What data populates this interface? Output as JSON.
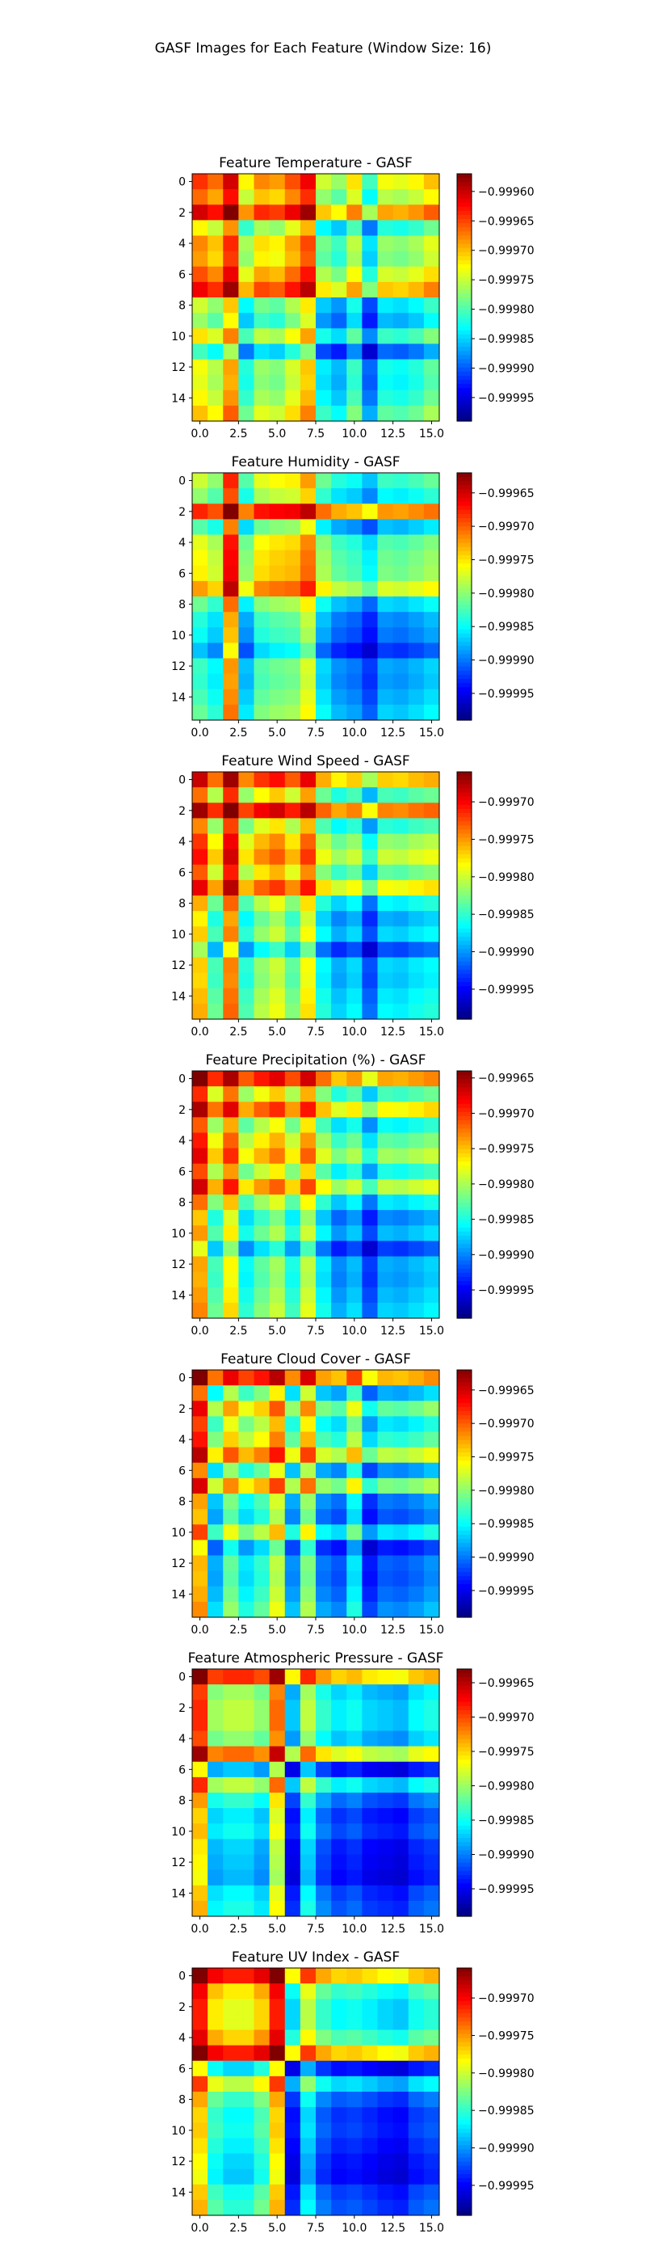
{
  "figure": {
    "suptitle": "GASF Images for Each Feature (Window Size: 16)"
  },
  "colormap": "jet",
  "chart_data": [
    {
      "type": "heatmap",
      "title": "Feature Temperature - GASF",
      "x_ticks": [
        "0.0",
        "2.5",
        "5.0",
        "7.5",
        "10.0",
        "12.5",
        "15.0"
      ],
      "y_ticks": [
        "0",
        "2",
        "4",
        "6",
        "8",
        "10",
        "12",
        "14"
      ],
      "colorbar_ticks": [
        "-0.99960",
        "-0.99965",
        "-0.99970",
        "-0.99975",
        "-0.99980",
        "-0.99985",
        "-0.99990",
        "-0.99995"
      ],
      "vmin": -0.99999,
      "vmax": -0.99957,
      "series": [
        0.7,
        0.62,
        0.82,
        0.42,
        0.58,
        0.55,
        0.66,
        0.78,
        0.35,
        0.28,
        0.45,
        0.18,
        0.4,
        0.38,
        0.42,
        0.5
      ]
    },
    {
      "type": "heatmap",
      "title": "Feature Humidity - GASF",
      "x_ticks": [
        "0.0",
        "2.5",
        "5.0",
        "7.5",
        "10.0",
        "12.5",
        "15.0"
      ],
      "y_ticks": [
        "0",
        "2",
        "4",
        "6",
        "8",
        "10",
        "12",
        "14"
      ],
      "colorbar_ticks": [
        "-0.99965",
        "-0.99970",
        "-0.99975",
        "-0.99980",
        "-0.99985",
        "-0.99990",
        "-0.99995"
      ],
      "vmin": -0.99999,
      "vmax": -0.99962,
      "series": [
        0.62,
        0.52,
        0.98,
        0.42,
        0.66,
        0.7,
        0.72,
        0.85,
        0.46,
        0.34,
        0.3,
        0.2,
        0.38,
        0.36,
        0.4,
        0.45
      ]
    },
    {
      "type": "heatmap",
      "title": "Feature Wind Speed - GASF",
      "x_ticks": [
        "0.0",
        "2.5",
        "5.0",
        "7.5",
        "10.0",
        "12.5",
        "15.0"
      ],
      "y_ticks": [
        "0",
        "2",
        "4",
        "6",
        "8",
        "10",
        "12",
        "14"
      ],
      "colorbar_ticks": [
        "-0.99970",
        "-0.99975",
        "-0.99980",
        "-0.99985",
        "-0.99990",
        "-0.99995"
      ],
      "vmin": -0.99999,
      "vmax": -0.99966,
      "series": [
        0.92,
        0.6,
        0.98,
        0.55,
        0.72,
        0.8,
        0.64,
        0.86,
        0.48,
        0.35,
        0.42,
        0.2,
        0.42,
        0.4,
        0.45,
        0.48
      ]
    },
    {
      "type": "heatmap",
      "title": "Feature Precipitation (%) - GASF",
      "x_ticks": [
        "0.0",
        "2.5",
        "5.0",
        "7.5",
        "10.0",
        "12.5",
        "15.0"
      ],
      "y_ticks": [
        "0",
        "2",
        "4",
        "6",
        "8",
        "10",
        "12",
        "14"
      ],
      "colorbar_ticks": [
        "-0.99965",
        "-0.99970",
        "-0.99975",
        "-0.99980",
        "-0.99985",
        "-0.99990",
        "-0.99995"
      ],
      "vmin": -0.99999,
      "vmax": -0.99964,
      "series": [
        0.96,
        0.62,
        0.88,
        0.52,
        0.66,
        0.76,
        0.55,
        0.8,
        0.48,
        0.32,
        0.4,
        0.2,
        0.38,
        0.36,
        0.4,
        0.44
      ]
    },
    {
      "type": "heatmap",
      "title": "Feature Cloud Cover - GASF",
      "x_ticks": [
        "0.0",
        "2.5",
        "5.0",
        "7.5",
        "10.0",
        "12.5",
        "15.0"
      ],
      "y_ticks": [
        "0",
        "2",
        "4",
        "6",
        "8",
        "10",
        "12",
        "14"
      ],
      "colorbar_ticks": [
        "-0.99965",
        "-0.99970",
        "-0.99975",
        "-0.99980",
        "-0.99985",
        "-0.99990",
        "-0.99995"
      ],
      "vmin": -0.99999,
      "vmax": -0.99962,
      "series": [
        0.98,
        0.45,
        0.74,
        0.55,
        0.66,
        0.86,
        0.4,
        0.78,
        0.36,
        0.3,
        0.55,
        0.2,
        0.32,
        0.3,
        0.34,
        0.4
      ]
    },
    {
      "type": "heatmap",
      "title": "Feature Atmospheric Pressure - GASF",
      "x_ticks": [
        "0.0",
        "2.5",
        "5.0",
        "7.5",
        "10.0",
        "12.5",
        "15.0"
      ],
      "y_ticks": [
        "0",
        "2",
        "4",
        "6",
        "8",
        "10",
        "12",
        "14"
      ],
      "colorbar_ticks": [
        "-0.99965",
        "-0.99970",
        "-0.99975",
        "-0.99980",
        "-0.99985",
        "-0.99990",
        "-0.99995"
      ],
      "vmin": -0.99999,
      "vmax": -0.99963,
      "series": [
        0.98,
        0.55,
        0.6,
        0.6,
        0.52,
        0.92,
        0.2,
        0.6,
        0.36,
        0.26,
        0.3,
        0.22,
        0.2,
        0.18,
        0.28,
        0.32
      ]
    },
    {
      "type": "heatmap",
      "title": "Feature UV Index - GASF",
      "x_ticks": [
        "0.0",
        "2.5",
        "5.0",
        "7.5",
        "10.0",
        "12.5",
        "15.0"
      ],
      "y_ticks": [
        "0",
        "2",
        "4",
        "6",
        "8",
        "10",
        "12",
        "14"
      ],
      "colorbar_ticks": [
        "-0.99970",
        "-0.99975",
        "-0.99980",
        "-0.99985",
        "-0.99990",
        "-0.99995"
      ],
      "vmin": -0.99999,
      "vmax": -0.99966,
      "series": [
        0.98,
        0.7,
        0.62,
        0.62,
        0.74,
        0.98,
        0.18,
        0.55,
        0.32,
        0.24,
        0.26,
        0.22,
        0.18,
        0.16,
        0.26,
        0.3
      ]
    }
  ]
}
